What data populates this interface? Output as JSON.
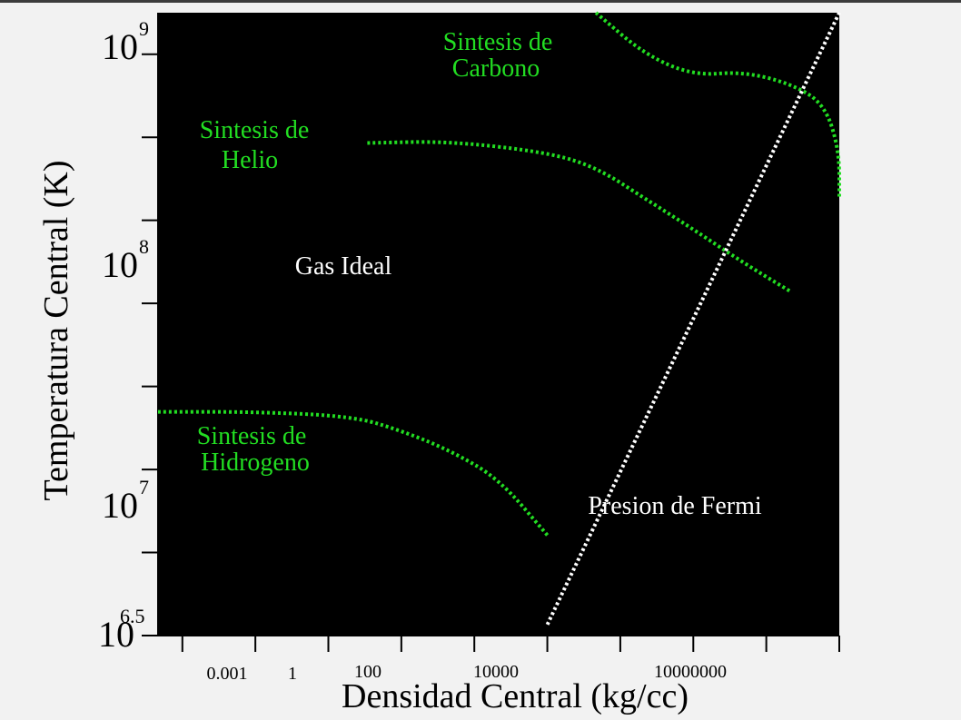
{
  "chart_data": {
    "type": "line",
    "xlabel": "Densidad Central (kg/cc)",
    "ylabel": "Temperatura Central (K)",
    "x_scale": "log",
    "y_scale": "log",
    "xlim": [
      0.0001,
      10000000000
    ],
    "ylim": [
      3162277.66,
      1000000000
    ],
    "x_tick_labels": [
      "0.001",
      "1",
      "100",
      "10000",
      "10000000"
    ],
    "y_tick_labels": [
      {
        "base": "10",
        "exp": "9"
      },
      {
        "base": "10",
        "exp": "8"
      },
      {
        "base": "10",
        "exp": "7"
      },
      {
        "base": "10",
        "exp": "6.5"
      }
    ],
    "colors": {
      "plot_background": "#000000",
      "burning_curves": "#22dd22",
      "fermi_line": "#ffffff",
      "page_background": "#f2f2f2"
    },
    "series": [
      {
        "name": "Sintesis de Hidrogeno",
        "label_lines": [
          "Sintesis de",
          "Hidrogeno"
        ],
        "points": [
          [
            0.0001,
            25000000
          ],
          [
            0.01,
            25000000
          ],
          [
            1,
            24000000
          ],
          [
            10,
            21000000
          ],
          [
            100,
            17500000
          ],
          [
            1000,
            13500000
          ],
          [
            10000,
            8000000
          ]
        ]
      },
      {
        "name": "Sintesis de Helio",
        "label_lines": [
          "Sintesis de",
          "Helio"
        ],
        "points": [
          [
            2,
            300000000
          ],
          [
            100,
            305000000
          ],
          [
            10000,
            275000000
          ],
          [
            100000,
            240000000
          ],
          [
            1000000,
            180000000
          ],
          [
            10000000,
            135000000
          ],
          [
            100000000,
            100000000
          ],
          [
            1000000000,
            76000000
          ]
        ]
      },
      {
        "name": "Sintesis de Carbono",
        "label_lines": [
          "Sintesis de",
          "Carbono"
        ],
        "points": [
          [
            100000,
            1000000000
          ],
          [
            1000000,
            680000000
          ],
          [
            10000000,
            560000000
          ],
          [
            100000000,
            580000000
          ],
          [
            1000000000,
            520000000
          ],
          [
            5000000000,
            430000000
          ],
          [
            10000000000,
            280000000
          ],
          [
            10000000000,
            180000000
          ]
        ]
      },
      {
        "name": "Presion de Fermi",
        "label_lines": [
          "Presion de Fermi"
        ],
        "points": [
          [
            10000,
            3500000
          ],
          [
            10000000000,
            1000000000
          ]
        ]
      }
    ],
    "annotations": [
      "Gas Ideal",
      "Presion de Fermi"
    ]
  }
}
